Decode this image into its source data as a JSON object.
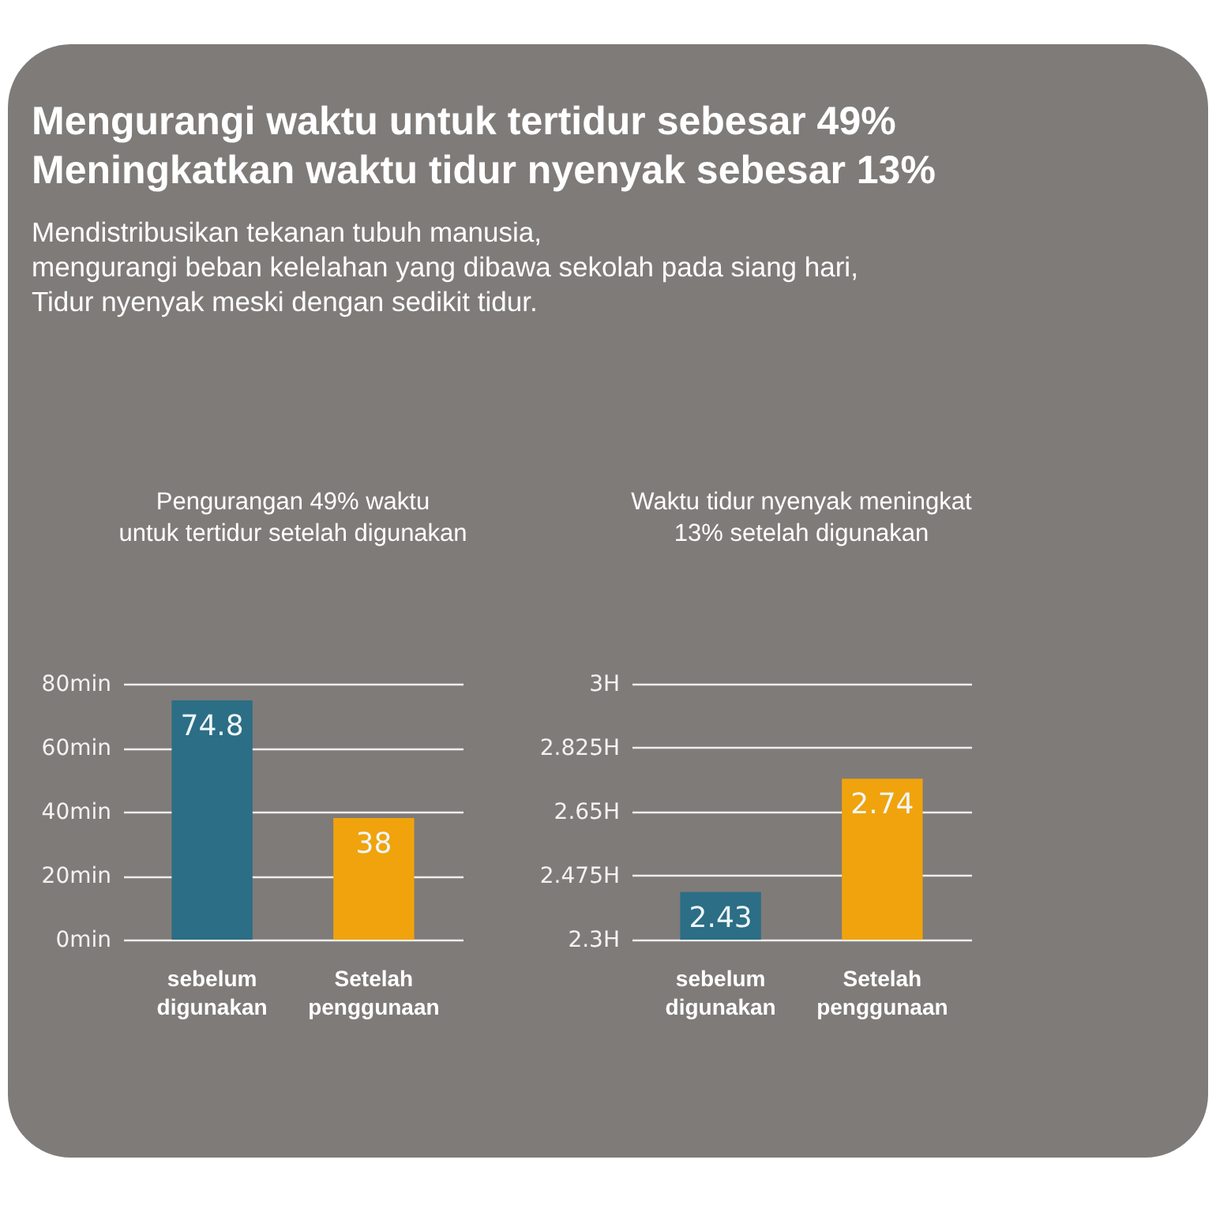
{
  "chart_data": [
    {
      "type": "bar",
      "title": "Pengurangan 49% waktu\nuntuk tertidur setelah digunakan",
      "annotations": [
        "Mengurangi waktu untuk tertidur sebesar 49%",
        "Meningkatkan waktu tidur nyenyak sebesar 13%",
        "Mendistribusikan tekanan tubuh manusia,",
        "mengurangi beban kelelahan yang dibawa sekolah pada siang hari,",
        "Tidur nyenyak meski dengan sedikit tidur."
      ],
      "categories": [
        "sebelum digunakan",
        "Setelah penggunaan"
      ],
      "values": [
        74.8,
        38
      ],
      "colors": [
        "#2b6e85",
        "#f0a30c"
      ],
      "ylim": [
        0,
        80
      ],
      "yticks": [
        {
          "value": 0,
          "label": "0min"
        },
        {
          "value": 20,
          "label": "20min"
        },
        {
          "value": 40,
          "label": "40min"
        },
        {
          "value": 60,
          "label": "60min"
        },
        {
          "value": 80,
          "label": "80min"
        }
      ],
      "grid": "y",
      "data_labels": true
    },
    {
      "type": "bar",
      "title": "Waktu tidur nyenyak meningkat\n13% setelah digunakan",
      "categories": [
        "sebelum digunakan",
        "Setelah penggunaan"
      ],
      "values": [
        2.43,
        2.74
      ],
      "colors": [
        "#2b6e85",
        "#f0a30c"
      ],
      "ylim": [
        2.3,
        3
      ],
      "yticks": [
        {
          "value": 2.3,
          "label": "2.3H"
        },
        {
          "value": 2.475,
          "label": "2.475H"
        },
        {
          "value": 2.65,
          "label": "2.65H"
        },
        {
          "value": 2.825,
          "label": "2.825H"
        },
        {
          "value": 3,
          "label": "3H"
        }
      ],
      "grid": "y",
      "data_labels": true
    }
  ]
}
